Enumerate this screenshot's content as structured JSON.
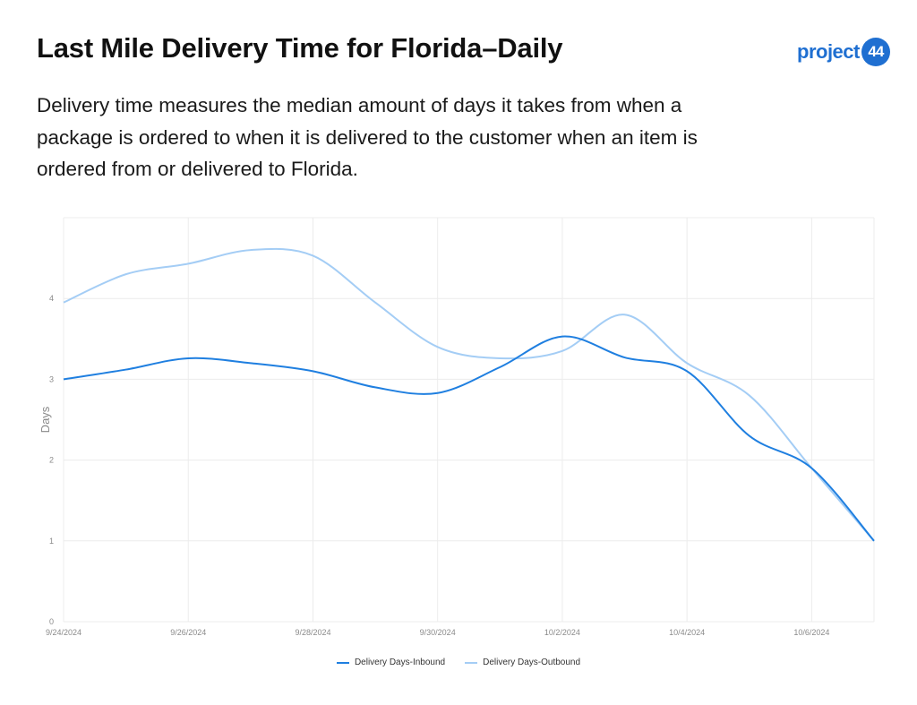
{
  "header": {
    "title": "Last Mile Delivery Time for Florida–Daily",
    "subtitle": "Delivery time measures the median amount of days it takes from when a package is ordered to when it is delivered to the customer when an item is ordered from or delivered to Florida."
  },
  "logo": {
    "word": "project",
    "badge": "44"
  },
  "colors": {
    "inbound": "#1f7fe0",
    "outbound": "#a4cdf5",
    "grid": "#ececec"
  },
  "chart_data": {
    "type": "line",
    "ylabel": "Days",
    "xlabel": "",
    "ylim": [
      0,
      5
    ],
    "yticks": [
      0,
      1,
      2,
      3,
      4
    ],
    "x": [
      "9/24/2024",
      "9/25/2024",
      "9/26/2024",
      "9/27/2024",
      "9/28/2024",
      "9/29/2024",
      "9/30/2024",
      "10/1/2024",
      "10/2/2024",
      "10/3/2024",
      "10/4/2024",
      "10/5/2024",
      "10/6/2024",
      "10/7/2024"
    ],
    "xtick_labels": [
      "9/24/2024",
      "9/26/2024",
      "9/28/2024",
      "9/30/2024",
      "10/2/2024",
      "10/4/2024",
      "10/6/2024"
    ],
    "grid": true,
    "legend_position": "bottom",
    "series": [
      {
        "name": "Delivery Days-Inbound",
        "values": [
          3.0,
          3.12,
          3.26,
          3.2,
          3.1,
          2.9,
          2.83,
          3.15,
          3.53,
          3.27,
          3.1,
          2.3,
          1.9,
          1.0
        ]
      },
      {
        "name": "Delivery Days-Outbound",
        "values": [
          3.95,
          4.3,
          4.43,
          4.6,
          4.53,
          3.95,
          3.4,
          3.26,
          3.35,
          3.8,
          3.2,
          2.8,
          1.9,
          1.0
        ]
      }
    ]
  }
}
